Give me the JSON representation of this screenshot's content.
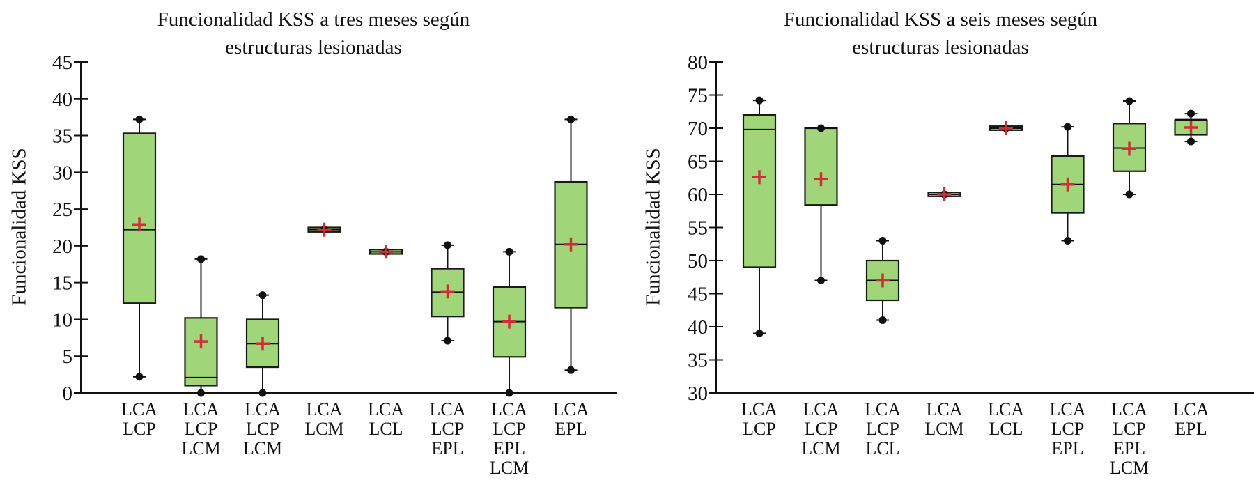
{
  "chart_data": [
    {
      "type": "box",
      "title_lines": [
        "Funcionalidad KSS a tres meses según",
        "estructuras lesionadas"
      ],
      "xlabel": "",
      "ylabel": "Funcionalidad KSS",
      "ylim": [
        0,
        45
      ],
      "yticks": [
        0,
        5,
        10,
        15,
        20,
        25,
        30,
        35,
        40,
        45
      ],
      "grid": false,
      "legend": "none",
      "categories": [
        [
          "LCA",
          "LCP"
        ],
        [
          "LCA",
          "LCP",
          "LCM"
        ],
        [
          "LCA",
          "LCP",
          "LCM"
        ],
        [
          "LCA",
          "LCM"
        ],
        [
          "LCA",
          "LCL"
        ],
        [
          "LCA",
          "LCP",
          "EPL"
        ],
        [
          "LCA",
          "LCP",
          "EPL",
          "LCM"
        ],
        [
          "LCA",
          "EPL"
        ]
      ],
      "boxes": [
        {
          "min": 2.2,
          "q1": 12.2,
          "median": 22.2,
          "q3": 35.3,
          "max": 37.2,
          "mean": 22.9
        },
        {
          "min": 0,
          "q1": 1.0,
          "median": 2.1,
          "q3": 10.2,
          "max": 18.2,
          "mean": 7.0
        },
        {
          "min": 0,
          "q1": 3.5,
          "median": 6.7,
          "q3": 10.0,
          "max": 13.3,
          "mean": 6.7
        },
        {
          "min": 22.2,
          "q1": 21.9,
          "median": 22.2,
          "q3": 22.5,
          "max": 22.2,
          "mean": 22.2
        },
        {
          "min": 19.2,
          "q1": 18.9,
          "median": 19.2,
          "q3": 19.5,
          "max": 19.2,
          "mean": 19.2
        },
        {
          "min": 7.1,
          "q1": 10.4,
          "median": 13.7,
          "q3": 16.9,
          "max": 20.1,
          "mean": 13.8
        },
        {
          "min": 0,
          "q1": 4.9,
          "median": 9.7,
          "q3": 14.4,
          "max": 19.2,
          "mean": 9.7
        },
        {
          "min": 3.1,
          "q1": 11.6,
          "median": 20.2,
          "q3": 28.7,
          "max": 37.2,
          "mean": 20.2
        }
      ]
    },
    {
      "type": "box",
      "title_lines": [
        "Funcionalidad KSS a seis meses según",
        "estructuras lesionadas"
      ],
      "xlabel": "",
      "ylabel": "Funcionalidad KSS",
      "ylim": [
        30,
        80
      ],
      "yticks": [
        30,
        35,
        40,
        45,
        50,
        55,
        60,
        65,
        70,
        75,
        80
      ],
      "grid": false,
      "legend": "none",
      "categories": [
        [
          "LCA",
          "LCP"
        ],
        [
          "LCA",
          "LCP",
          "LCM"
        ],
        [
          "LCA",
          "LCP",
          "LCL"
        ],
        [
          "LCA",
          "LCM"
        ],
        [
          "LCA",
          "LCL"
        ],
        [
          "LCA",
          "LCP",
          "EPL"
        ],
        [
          "LCA",
          "LCP",
          "EPL",
          "LCM"
        ],
        [
          "LCA",
          "EPL"
        ]
      ],
      "boxes": [
        {
          "min": 39.0,
          "q1": 49.0,
          "median": 69.8,
          "q3": 72.0,
          "max": 74.2,
          "mean": 62.6
        },
        {
          "min": 47.0,
          "q1": 58.4,
          "median": 70.0,
          "q3": 70.0,
          "max": 70.0,
          "mean": 62.3
        },
        {
          "min": 41.0,
          "q1": 44.0,
          "median": 47.0,
          "q3": 50.0,
          "max": 53.0,
          "mean": 47.0
        },
        {
          "min": 60.0,
          "q1": 59.7,
          "median": 60.0,
          "q3": 60.3,
          "max": 60.0,
          "mean": 60.0
        },
        {
          "min": 70.0,
          "q1": 69.7,
          "median": 70.0,
          "q3": 70.3,
          "max": 70.0,
          "mean": 70.0
        },
        {
          "min": 53.0,
          "q1": 57.2,
          "median": 61.5,
          "q3": 65.8,
          "max": 70.2,
          "mean": 61.5
        },
        {
          "min": 60.0,
          "q1": 63.5,
          "median": 67.0,
          "q3": 70.7,
          "max": 74.1,
          "mean": 66.9
        },
        {
          "min": 68.0,
          "q1": 69.0,
          "median": 71.3,
          "q3": 71.2,
          "max": 72.2,
          "mean": 70.1
        }
      ]
    }
  ],
  "colors": {
    "box_fill": "#a1d57a",
    "box_stroke": "#1a1a1a",
    "mean_marker": "#cc2f36",
    "whisker_dot": "#111111"
  }
}
